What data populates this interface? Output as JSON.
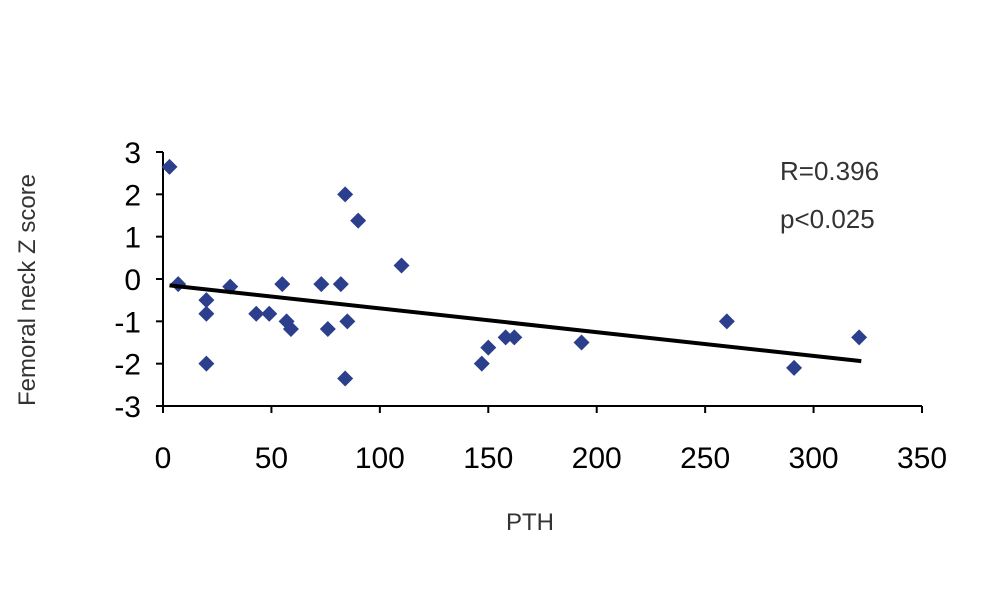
{
  "chart_data": {
    "type": "scatter",
    "title": "",
    "xlabel": "PTH",
    "ylabel": "Femoral neck Z score",
    "xlim": [
      0,
      350
    ],
    "ylim": [
      -3,
      3
    ],
    "xticks": [
      0,
      50,
      100,
      150,
      200,
      250,
      300,
      350
    ],
    "yticks": [
      3,
      2,
      1,
      0,
      -1,
      -2,
      -3
    ],
    "grid": false,
    "marker_color": "#2b3f8c",
    "points": [
      [
        3,
        2.65
      ],
      [
        7,
        -0.12
      ],
      [
        20,
        -0.5
      ],
      [
        20,
        -0.82
      ],
      [
        20,
        -2.0
      ],
      [
        31,
        -0.18
      ],
      [
        43,
        -0.82
      ],
      [
        49,
        -0.82
      ],
      [
        55,
        -0.12
      ],
      [
        57,
        -1.0
      ],
      [
        59,
        -1.18
      ],
      [
        73,
        -0.12
      ],
      [
        76,
        -1.18
      ],
      [
        82,
        -0.12
      ],
      [
        84,
        2.0
      ],
      [
        84,
        -2.35
      ],
      [
        85,
        -1.0
      ],
      [
        90,
        1.38
      ],
      [
        110,
        0.32
      ],
      [
        147,
        -2.0
      ],
      [
        150,
        -1.62
      ],
      [
        158,
        -1.38
      ],
      [
        162,
        -1.38
      ],
      [
        193,
        -1.5
      ],
      [
        260,
        -1.0
      ],
      [
        291,
        -2.1
      ],
      [
        321,
        -1.38
      ]
    ],
    "trendline": {
      "x": [
        3,
        322
      ],
      "y": [
        -0.15,
        -1.94
      ],
      "color": "#000000"
    },
    "annotations": [
      "R=0.396",
      "p<0.025"
    ]
  }
}
